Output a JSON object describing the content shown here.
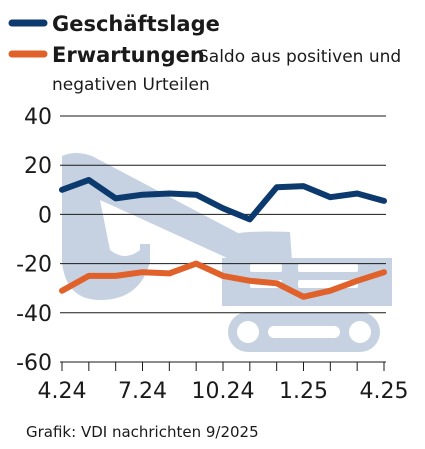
{
  "colors": {
    "geschaeftslage": "#0c3a6e",
    "erwartungen": "#e0612a",
    "watermark": "#c6d2e2",
    "grid": "#1a1a1a"
  },
  "legend": {
    "series_1_label": "Geschäftslage",
    "series_2_label": "Erwartungen",
    "note_line_1": "Saldo aus positiven und",
    "note_line_2": "negativen Urteilen"
  },
  "source": "Grafik: VDI nachrichten 9/2025",
  "watermark_icon": "excavator-icon",
  "chart_data": {
    "type": "line",
    "x": [
      "4.24",
      "5.24",
      "6.24",
      "7.24",
      "8.24",
      "9.24",
      "10.24",
      "11.24",
      "12.24",
      "1.25",
      "2.25",
      "3.25",
      "4.25"
    ],
    "xticks": [
      "4.24",
      "7.24",
      "10.24",
      "1.25",
      "4.25"
    ],
    "yticks": [
      "40",
      "20",
      "0",
      "-20",
      "-40",
      "-60"
    ],
    "ylim": [
      -60,
      40
    ],
    "grid": true,
    "legend_position": "top-left",
    "series": [
      {
        "name": "Geschäftslage",
        "values": [
          10,
          14,
          6.5,
          8,
          8.5,
          8,
          2.5,
          -2,
          11,
          11.5,
          7,
          8.5,
          5.5
        ]
      },
      {
        "name": "Erwartungen",
        "values": [
          -31,
          -25,
          -25,
          -23.5,
          -24,
          -20,
          -25,
          -27,
          -28,
          -33.5,
          -31,
          -27,
          -23.5
        ]
      }
    ]
  }
}
